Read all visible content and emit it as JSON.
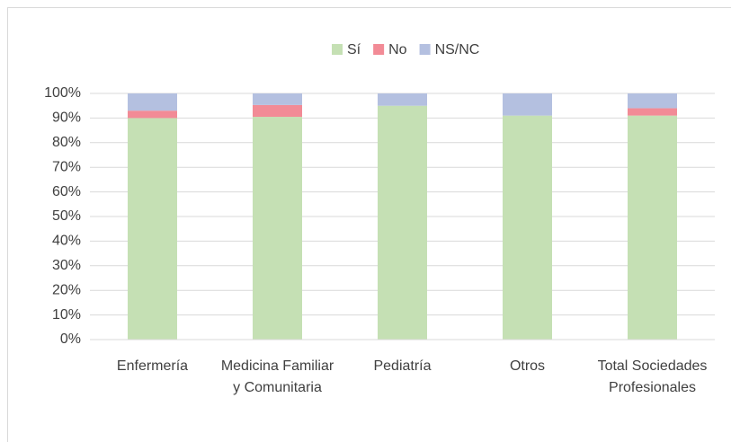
{
  "chart_data": {
    "type": "stacked_bar",
    "categories": [
      "Enfermería",
      "Medicina Familiar y Comunitaria",
      "Pediatría",
      "Otros",
      "Total Sociedades Profesionales"
    ],
    "series": [
      {
        "name": "Sí",
        "color": "#c5e0b4",
        "values": [
          90,
          90.5,
          95,
          91,
          91
        ]
      },
      {
        "name": "No",
        "color": "#f28b96",
        "values": [
          3,
          4.8,
          0,
          0,
          3
        ]
      },
      {
        "name": "NS/NC",
        "color": "#b4c0e0",
        "values": [
          7,
          4.7,
          5,
          9,
          6
        ]
      }
    ],
    "ylim": [
      0,
      100
    ],
    "yticks": [
      {
        "value": 0,
        "label": "0%"
      },
      {
        "value": 10,
        "label": "10%"
      },
      {
        "value": 20,
        "label": "20%"
      },
      {
        "value": 30,
        "label": "30%"
      },
      {
        "value": 40,
        "label": "40%"
      },
      {
        "value": 50,
        "label": "50%"
      },
      {
        "value": 60,
        "label": "60%"
      },
      {
        "value": 70,
        "label": "70%"
      },
      {
        "value": 80,
        "label": "80%"
      },
      {
        "value": 90,
        "label": "90%"
      },
      {
        "value": 100,
        "label": "100%"
      }
    ],
    "grid": true,
    "legend": "top"
  }
}
